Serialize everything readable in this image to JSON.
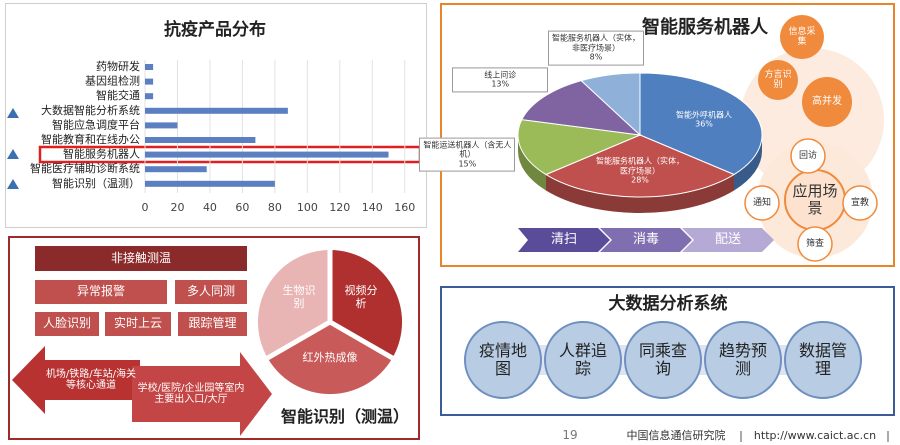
{
  "chart_data": [
    {
      "type": "hbar",
      "title": "抗疫产品分布",
      "categories": [
        "药物研发",
        "基因组检测",
        "智能交通",
        "大数据智能分析系统",
        "智能应急调度平台",
        "智能教育和在线办公",
        "智能服务机器人",
        "智能医疗辅助诊断系统",
        "智能识别（温测）"
      ],
      "values": [
        5,
        5,
        5,
        88,
        20,
        68,
        150,
        38,
        80
      ],
      "color": "#5b7fc0",
      "xlim": [
        0,
        170
      ],
      "xticks": [
        0,
        20,
        40,
        60,
        80,
        100,
        120,
        140,
        160
      ],
      "grid": true
    },
    {
      "type": "pie",
      "title": "智能服务机器人",
      "categories": [
        "智能外呼机器人",
        "智能服务机器人（实体，医疗场景）",
        "智能运送机器人（含无人机）",
        "线上问诊",
        "智能服务机器人（实体，非医疗场景）"
      ],
      "values": [
        36,
        28,
        15,
        13,
        8
      ],
      "value_labels": [
        "36%",
        "28%",
        "15%",
        "13%",
        "8%"
      ],
      "colors": [
        "#4f7fbf",
        "#c0504d",
        "#9bbb59",
        "#8064a2",
        "#8fb0d8"
      ]
    }
  ],
  "robot_panel": {
    "process": [
      "清扫",
      "消毒",
      "配送"
    ],
    "features": [
      "信息采集",
      "方言识别",
      "高并发"
    ],
    "scenario_center": "应用场景",
    "scenarios": [
      "回访",
      "宣教",
      "筛查",
      "通知"
    ]
  },
  "recognition_panel": {
    "boxes": [
      "非接触测温",
      "异常报警",
      "多人同测",
      "人脸识别",
      "实时上云",
      "跟踪管理"
    ],
    "channels": [
      "机场/铁路/车站/海关等核心通道",
      "学校/医院/企业园等室内主要出入口/大厅"
    ],
    "methods": [
      "生物识别",
      "视频分析",
      "红外热成像"
    ],
    "caption": "智能识别（测温）"
  },
  "bigdata_panel": {
    "title": "大数据分析系统",
    "functions": [
      "疫情地图",
      "人群追踪",
      "同乘查询",
      "趋势预测",
      "数据管理"
    ]
  },
  "footer": {
    "page": "19",
    "org": "中国信息通信研究院",
    "url": "http://www.caict.ac.cn"
  }
}
